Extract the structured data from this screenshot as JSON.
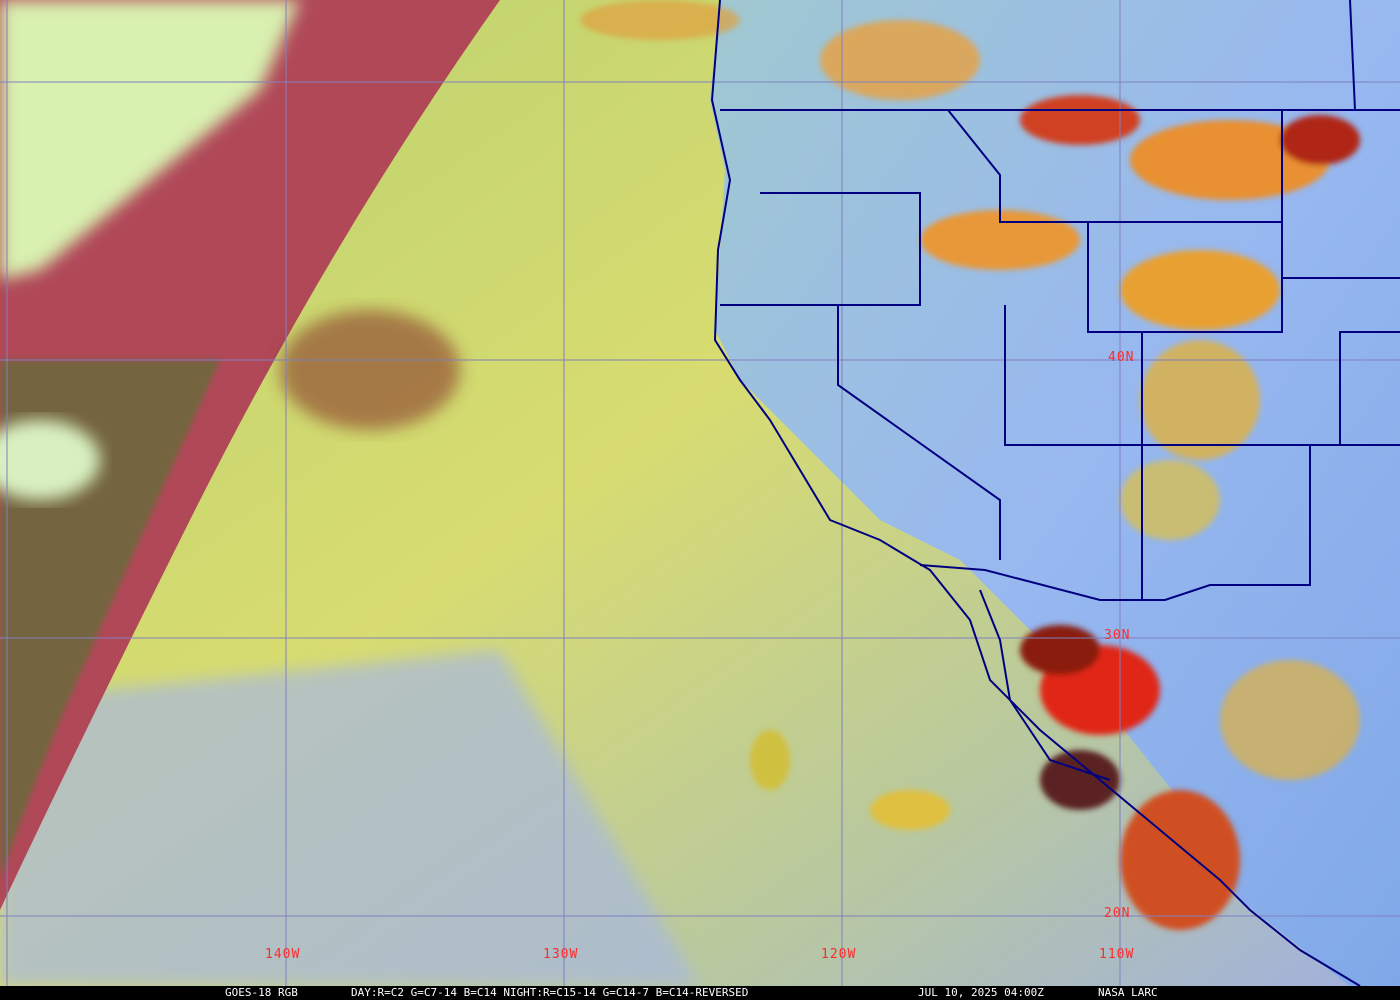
{
  "caption": {
    "product": "GOES-18 RGB",
    "recipe": "DAY:R=C2 G=C7-14 B=C14 NIGHT:R=C15-14 G=C14-7 B=C14-REVERSED",
    "timestamp": "JUL 10, 2025 04:00Z",
    "credit": "NASA LARC"
  },
  "grid": {
    "latitude_labels": [
      "40N",
      "30N",
      "20N"
    ],
    "longitude_labels": [
      "140W",
      "130W",
      "120W",
      "110W"
    ],
    "label_color": "#ff2a2a",
    "grid_color": "#8080c0",
    "border_color": "#000080"
  },
  "colors": {
    "ocean_clear": "#c8d870",
    "ocean_lowcloud": "#a8b8e0",
    "night_side": "#b04858",
    "convection": "#e03020",
    "midcloud": "#e8a030",
    "land": "#90b0f0"
  }
}
